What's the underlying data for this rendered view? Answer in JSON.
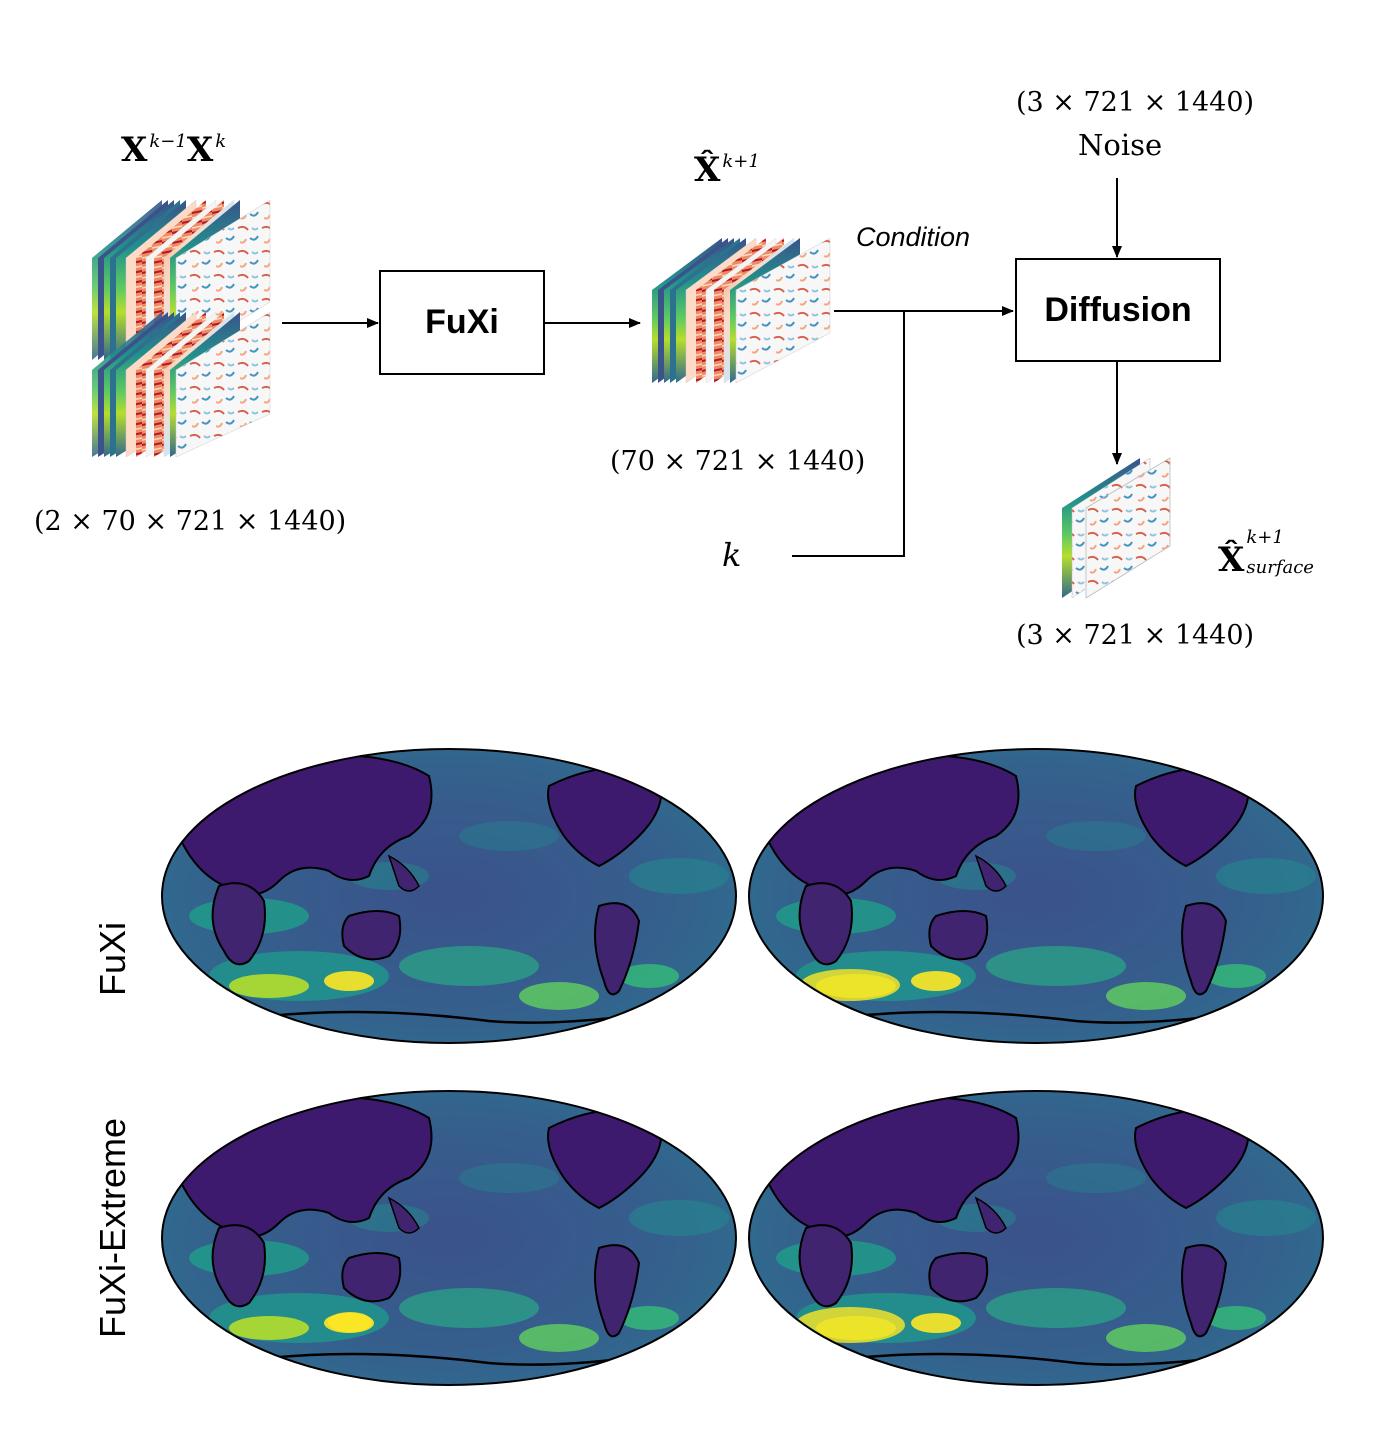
{
  "top": {
    "input_label": "X^{k-1}X^{k}",
    "input_sym1": "X",
    "input_sup1": "k−1",
    "input_sym2": "X",
    "input_sup2": "k",
    "input_dims": "(2 × 70 × 721 × 1440)",
    "fuxi_label": "FuXi",
    "pred_sym": "X̂",
    "pred_sup": "k+1",
    "pred_dims": "(70 × 721 × 1440)",
    "condition_label": "Condition",
    "noise_dims": "(3 × 721 × 1440)",
    "noise_label": "Noise",
    "diffusion_label": "Diffusion",
    "k_label": "k",
    "output_sym": "X̂",
    "output_sup": "k+1",
    "output_sub": "surface",
    "output_dims": "(3 × 721 × 1440)"
  },
  "bottom": {
    "row_labels": [
      "FuXi",
      "FuXi-Extreme"
    ]
  },
  "colors": {
    "viridis_dark": "#440154",
    "viridis_mid": "#21918c",
    "viridis_light": "#fde725",
    "red": "#b2182b",
    "blue": "#2166ac"
  }
}
